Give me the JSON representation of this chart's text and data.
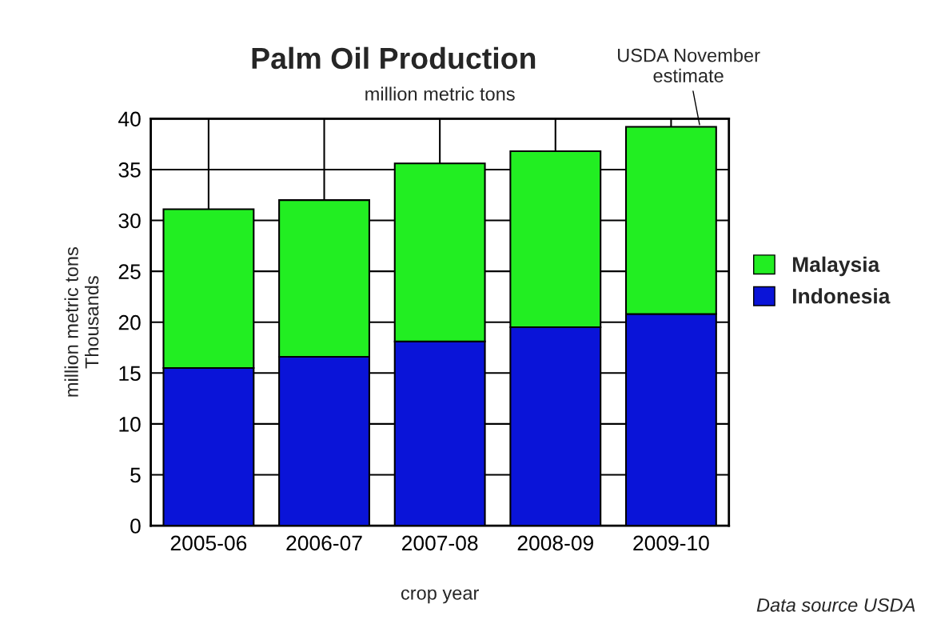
{
  "chart_data": {
    "type": "bar",
    "title": "Palm Oil Production",
    "subtitle": "million metric tons",
    "xlabel": "crop year",
    "ylabel": "million metric tons\nThousands",
    "categories": [
      "2005-06",
      "2006-07",
      "2007-08",
      "2008-09",
      "2009-10"
    ],
    "series": [
      {
        "name": "Indonesia",
        "color": "#0a14d8",
        "values": [
          15.5,
          16.6,
          18.1,
          19.5,
          20.8
        ]
      },
      {
        "name": "Malaysia",
        "color": "#22ee22",
        "values": [
          15.6,
          15.4,
          17.5,
          17.3,
          18.4
        ]
      }
    ],
    "stacked": true,
    "ylim": [
      0,
      40
    ],
    "yticks": [
      0,
      5,
      10,
      15,
      20,
      25,
      30,
      35,
      40
    ],
    "grid": true,
    "legend": "right",
    "annotations": [
      {
        "text": "USDA November\nestimate",
        "x": "2009-10",
        "y": 39.2
      },
      "Data source USDA"
    ]
  }
}
